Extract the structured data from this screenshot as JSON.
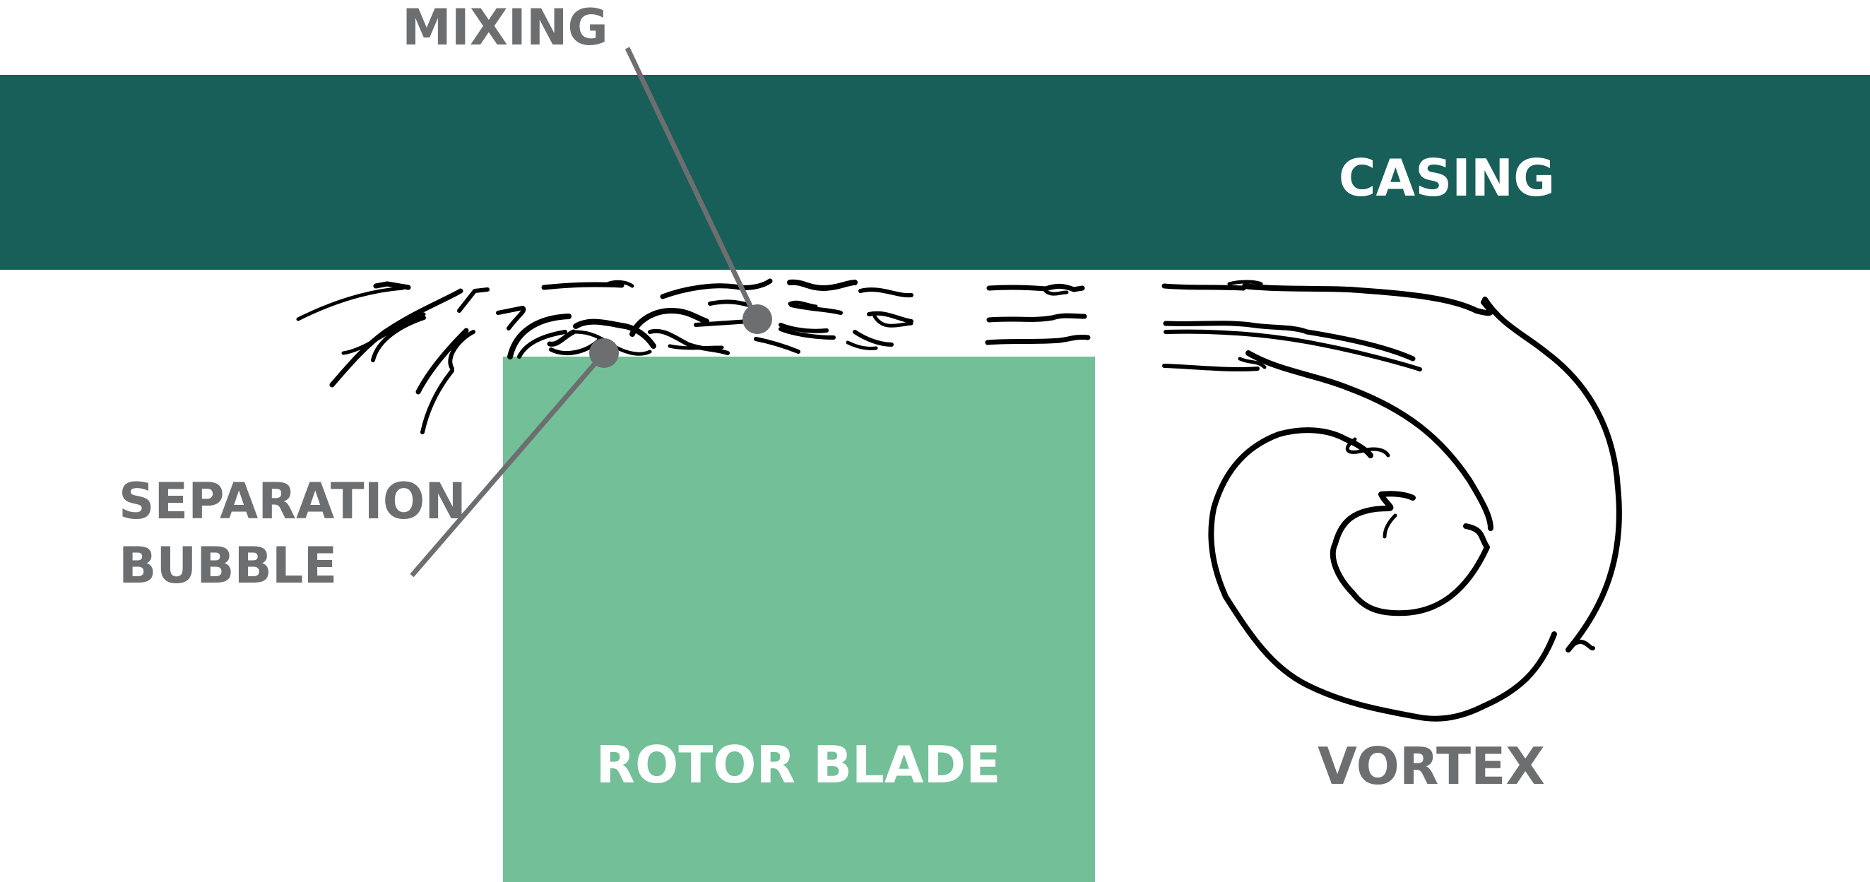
{
  "labels": {
    "mixing": "MIXING",
    "casing": "CASING",
    "separation_line1": "SEPARATION",
    "separation_line2": "BUBBLE",
    "rotor_blade": "ROTOR BLADE",
    "vortex": "VORTEX"
  },
  "colors": {
    "casing": "#175F58",
    "rotor_blade": "#72BF98",
    "callout": "#6D6E70",
    "flow": "#000000",
    "label_on_dark": "#FFFFFF",
    "label_on_light": "#6D6E70"
  }
}
